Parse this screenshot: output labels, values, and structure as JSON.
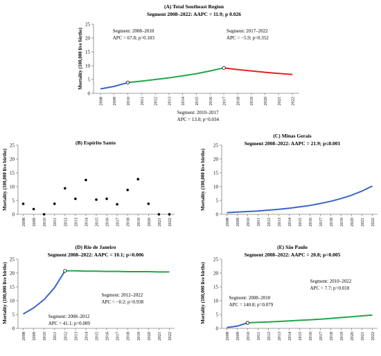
{
  "colors": {
    "blue": "#3a64c8",
    "green": "#1ea64a",
    "red": "#e8201e",
    "axis": "#808080",
    "point": "#000000"
  },
  "chart_data": [
    {
      "id": "A",
      "type": "line",
      "title": "(A) Total Southeast Region",
      "subtitle": "Segment 2008–2022: AAPC = 11.9; p 0.026",
      "ylabel": "Mortality (100,000 live births)",
      "ylim": [
        0,
        25
      ],
      "yticks": [
        0,
        5,
        10,
        15,
        20,
        25
      ],
      "x": [
        2008,
        2009,
        2010,
        2011,
        2012,
        2013,
        2014,
        2015,
        2016,
        2017,
        2018,
        2019,
        2020,
        2021,
        2022
      ],
      "segments": [
        {
          "color": "blue",
          "x": [
            2008,
            2009,
            2010
          ],
          "y": [
            1.6,
            2.5,
            3.9
          ]
        },
        {
          "color": "green",
          "x": [
            2010,
            2011,
            2012,
            2013,
            2014,
            2015,
            2016,
            2017
          ],
          "y": [
            3.9,
            4.4,
            5.0,
            5.6,
            6.3,
            7.1,
            8.1,
            9.2
          ]
        },
        {
          "color": "red",
          "x": [
            2017,
            2018,
            2019,
            2020,
            2021,
            2022
          ],
          "y": [
            9.2,
            8.6,
            8.1,
            7.6,
            7.2,
            6.8
          ]
        }
      ],
      "joinpoints": [
        {
          "x": 2010,
          "y": 3.9
        },
        {
          "x": 2017,
          "y": 9.2
        }
      ],
      "annotations": [
        {
          "lines": [
            "Segment: 2008–2010",
            "APC = 67.8; p=0.103"
          ],
          "x": 2008.9,
          "y": 22
        },
        {
          "lines": [
            "Segment: 2017–2022",
            "APC = −5.9; p=0.352"
          ],
          "x": 2017.2,
          "y": 22
        },
        {
          "lines": [
            "Segment: 2010–2017",
            "APC = 13.0; p=0.034"
          ],
          "x": 2013.6,
          "y": -7.5
        }
      ]
    },
    {
      "id": "B",
      "type": "scatter",
      "title": "(B) Espírito Santo",
      "subtitle": "",
      "ylabel": "Mortality (100,000 live births)",
      "ylim": [
        0,
        25
      ],
      "yticks": [
        0,
        5,
        10,
        15,
        20,
        25
      ],
      "x": [
        2008,
        2009,
        2010,
        2011,
        2012,
        2013,
        2014,
        2015,
        2016,
        2017,
        2018,
        2019,
        2020,
        2021,
        2022
      ],
      "points": [
        {
          "x": 2008,
          "y": 3.8
        },
        {
          "x": 2009,
          "y": 1.9
        },
        {
          "x": 2010,
          "y": 0
        },
        {
          "x": 2011,
          "y": 3.8
        },
        {
          "x": 2012,
          "y": 9.4
        },
        {
          "x": 2013,
          "y": 5.6
        },
        {
          "x": 2014,
          "y": 12.4
        },
        {
          "x": 2015,
          "y": 5.3
        },
        {
          "x": 2016,
          "y": 5.6
        },
        {
          "x": 2017,
          "y": 3.6
        },
        {
          "x": 2018,
          "y": 8.8
        },
        {
          "x": 2019,
          "y": 12.7
        },
        {
          "x": 2020,
          "y": 3.8
        },
        {
          "x": 2021,
          "y": 0
        },
        {
          "x": 2022,
          "y": 0
        }
      ]
    },
    {
      "id": "C",
      "type": "line",
      "title": "(C) Minas Gerais",
      "subtitle": "Segment 2008–2022: AAPC = 21.9; p≤0.001",
      "ylabel": "Mortality (100,000 live births)",
      "ylim": [
        0,
        25
      ],
      "yticks": [
        0,
        5,
        10,
        15,
        20,
        25
      ],
      "x": [
        2008,
        2009,
        2010,
        2011,
        2012,
        2013,
        2014,
        2015,
        2016,
        2017,
        2018,
        2019,
        2020,
        2021,
        2022
      ],
      "segments": [
        {
          "color": "blue",
          "x": [
            2008,
            2009,
            2010,
            2011,
            2012,
            2013,
            2014,
            2015,
            2016,
            2017,
            2018,
            2019,
            2020,
            2021,
            2022
          ],
          "y": [
            0.6,
            0.8,
            1.0,
            1.2,
            1.5,
            1.8,
            2.2,
            2.7,
            3.2,
            3.9,
            4.7,
            5.7,
            6.9,
            8.4,
            10.2
          ]
        }
      ],
      "joinpoints": [],
      "annotations": []
    },
    {
      "id": "D",
      "type": "line",
      "title": "(D) Rio de Janeiro",
      "subtitle": "Segment 2008–2022: AAPC = 10.1; p=0.006",
      "ylabel": "Mortality (100,000 live births)",
      "ylim": [
        0,
        25
      ],
      "yticks": [
        0,
        5,
        10,
        15,
        20,
        25
      ],
      "x": [
        2008,
        2009,
        2010,
        2011,
        2012,
        2013,
        2014,
        2015,
        2016,
        2017,
        2018,
        2019,
        2020,
        2021,
        2022
      ],
      "segments": [
        {
          "color": "blue",
          "x": [
            2008,
            2009,
            2010,
            2011,
            2012
          ],
          "y": [
            5.2,
            7.4,
            10.4,
            14.7,
            20.8
          ]
        },
        {
          "color": "green",
          "x": [
            2012,
            2013,
            2014,
            2015,
            2016,
            2017,
            2018,
            2019,
            2020,
            2021,
            2022
          ],
          "y": [
            20.8,
            20.8,
            20.7,
            20.7,
            20.6,
            20.6,
            20.5,
            20.5,
            20.5,
            20.4,
            20.4
          ]
        }
      ],
      "joinpoints": [
        {
          "x": 2012,
          "y": 20.8
        }
      ],
      "annotations": [
        {
          "lines": [
            "Segment: 2012–2022",
            "APC = −0.2; p=0.938"
          ],
          "x": 2015.5,
          "y": 11.5
        },
        {
          "lines": [
            "Segment: 2008–2012",
            "APC = 41.1; p=0.009"
          ],
          "x": 2010.4,
          "y": 3.8
        }
      ]
    },
    {
      "id": "E",
      "type": "line",
      "title": "(E) São Paulo",
      "subtitle": "Segment 2008–2022: AAPC = 20.8; p=0.005",
      "ylabel": "Mortality (100,000 live births)",
      "ylim": [
        0,
        25
      ],
      "yticks": [
        0,
        5,
        10,
        15,
        20,
        25
      ],
      "x": [
        2008,
        2009,
        2010,
        2011,
        2012,
        2013,
        2014,
        2015,
        2016,
        2017,
        2018,
        2019,
        2020,
        2021,
        2022
      ],
      "segments": [
        {
          "color": "blue",
          "x": [
            2008,
            2009,
            2010
          ],
          "y": [
            0.3,
            0.8,
            2.0
          ]
        },
        {
          "color": "green",
          "x": [
            2010,
            2011,
            2012,
            2013,
            2014,
            2015,
            2016,
            2017,
            2018,
            2019,
            2020,
            2021,
            2022
          ],
          "y": [
            2.0,
            2.2,
            2.3,
            2.5,
            2.7,
            2.9,
            3.1,
            3.3,
            3.6,
            3.9,
            4.2,
            4.5,
            4.8
          ]
        }
      ],
      "joinpoints": [
        {
          "x": 2010,
          "y": 2.0
        }
      ],
      "annotations": [
        {
          "lines": [
            "Segment: 2010–2022",
            "APC = 7.7; p=0.018"
          ],
          "x": 2016,
          "y": 16.5
        },
        {
          "lines": [
            "Segment: 2008–2010",
            "APC = 140.8; p=0.079"
          ],
          "x": 2008.2,
          "y": 10.5
        }
      ]
    }
  ]
}
